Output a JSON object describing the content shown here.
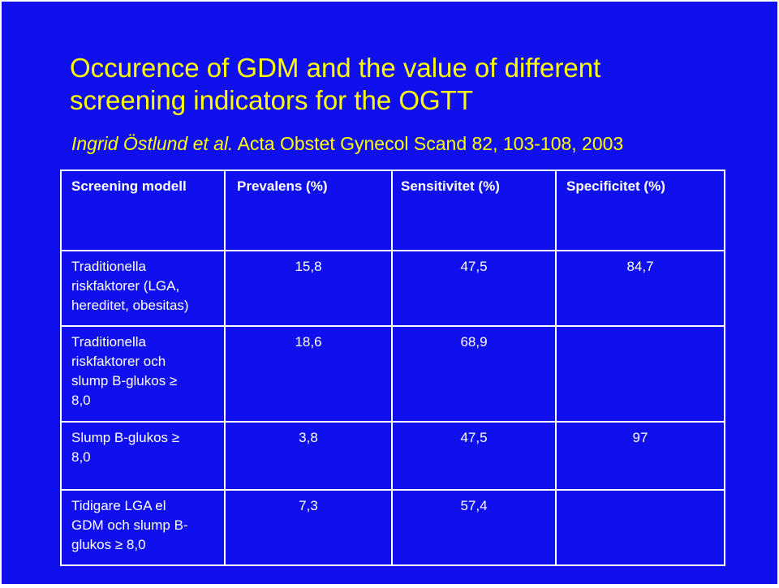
{
  "title": {
    "line1": "Occurence of GDM and the value of different",
    "line2": "screening indicators for the OGTT"
  },
  "subtitle": {
    "authors": "Ingrid Östlund et al.",
    "citation": " Acta Obstet Gynecol Scand 82, 103-108, 2003"
  },
  "table": {
    "headers": [
      "Screening modell",
      "Prevalens (%)",
      "Sensitivitet (%)",
      "Specificitet (%)"
    ],
    "rows": [
      {
        "label_lines": [
          "Traditionella",
          "riskfaktorer (LGA,",
          "hereditet, obesitas)"
        ],
        "prevalens": "15,8",
        "sensitivitet": "47,5",
        "specificitet": "84,7"
      },
      {
        "label_lines": [
          "Traditionella",
          "riskfaktorer och",
          "slump B-glukos ≥",
          "8,0"
        ],
        "prevalens": "18,6",
        "sensitivitet": "68,9",
        "specificitet": ""
      },
      {
        "label_lines": [
          "Slump B-glukos ≥",
          "8,0"
        ],
        "prevalens": "3,8",
        "sensitivitet": "47,5",
        "specificitet": "97"
      },
      {
        "label_lines": [
          "Tidigare LGA el",
          "GDM och slump B-",
          "glukos ≥ 8,0"
        ],
        "prevalens": "7,3",
        "sensitivitet": "57,4",
        "specificitet": ""
      }
    ]
  },
  "colors": {
    "background": "#1010ee",
    "title": "#ffff00",
    "text": "#ffffff"
  }
}
